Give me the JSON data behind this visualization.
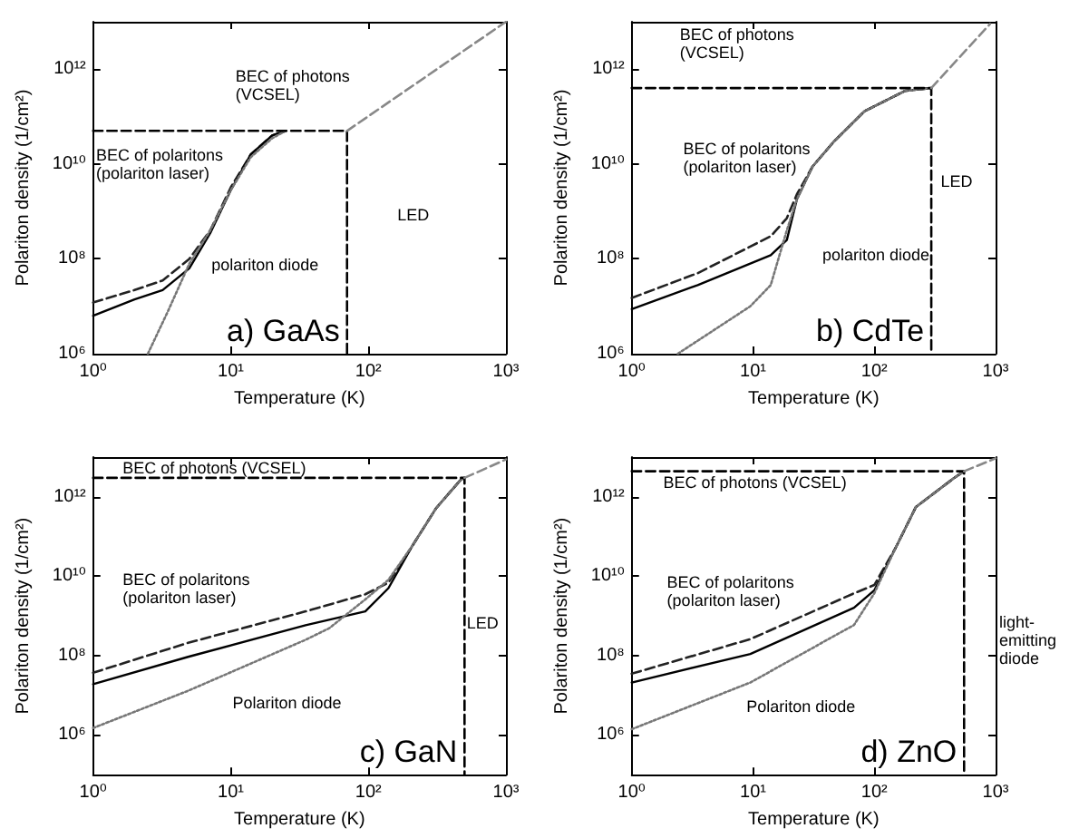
{
  "chart_data": [
    {
      "type": "line",
      "title": "a) GaAs",
      "xlabel": "Temperature (K)",
      "ylabel": "Polariton density (1/cm²)",
      "log": "xy",
      "grid": false,
      "marker": "none",
      "xlim": [
        1,
        1000
      ],
      "xticks": [
        {
          "value": 1,
          "label": "10⁰"
        },
        {
          "value": 10,
          "label": "10¹"
        },
        {
          "value": 100,
          "label": "10²"
        },
        {
          "value": 1000,
          "label": "10³"
        }
      ],
      "ylim": [
        1000000,
        10000000000000
      ],
      "yticks": [
        {
          "value": 1000000,
          "label": "10⁶"
        },
        {
          "value": 100000000,
          "label": "10⁸"
        },
        {
          "value": 10000000000,
          "label": "10¹⁰"
        },
        {
          "value": 1000000000000,
          "label": "10¹²"
        }
      ],
      "series": [
        {
          "color": "#222222",
          "line_style": "dashed",
          "x": [
            1,
            2,
            3.2,
            5,
            7.1,
            10,
            14,
            20,
            25
          ],
          "values": [
            12000000.0,
            22000000.0,
            35000000.0,
            100000000.0,
            400000000.0,
            3200000000.0,
            16000000000.0,
            40000000000.0,
            50000000000.0
          ]
        },
        {
          "color": "#000000",
          "line_style": "solid",
          "x": [
            1,
            2,
            3.2,
            5,
            7.1,
            10,
            14,
            20,
            25
          ],
          "values": [
            6300000.0,
            14000000.0,
            22000000.0,
            63000000.0,
            350000000.0,
            2800000000.0,
            16000000000.0,
            40000000000.0,
            50000000000.0
          ]
        },
        {
          "color": "#777777",
          "line_style": "dotted",
          "x": [
            2.5,
            3.5,
            5,
            7.1,
            10,
            14,
            20,
            25
          ],
          "values": [
            1000000.0,
            7900000.0,
            79000000.0,
            400000000.0,
            2800000000.0,
            14000000000.0,
            35000000000.0,
            50000000000.0
          ]
        },
        {
          "color": "#000000",
          "line_style": "dashed",
          "x": [
            1,
            70,
            70
          ],
          "values": [
            50000000000.0,
            50000000000.0,
            1000000.0
          ]
        },
        {
          "color": "#888888",
          "line_style": "dashed",
          "x": [
            70,
            1000
          ],
          "values": [
            50000000000.0,
            10000000000000.0
          ]
        }
      ],
      "annotations": [
        "BEC of photons\n(VCSEL)",
        "BEC of polaritons\n(polariton laser)",
        "polariton diode",
        "LED"
      ]
    },
    {
      "type": "line",
      "title": "b) CdTe",
      "xlabel": "Temperature (K)",
      "ylabel": "Polariton density (1/cm²)",
      "log": "xy",
      "grid": false,
      "marker": "none",
      "xlim": [
        1,
        1000
      ],
      "xticks": [
        {
          "value": 1,
          "label": "10⁰"
        },
        {
          "value": 10,
          "label": "10¹"
        },
        {
          "value": 100,
          "label": "10²"
        },
        {
          "value": 1000,
          "label": "10³"
        }
      ],
      "ylim": [
        1000000,
        10000000000000
      ],
      "yticks": [
        {
          "value": 1000000,
          "label": "10⁶"
        },
        {
          "value": 100000000,
          "label": "10⁸"
        },
        {
          "value": 10000000000,
          "label": "10¹⁰"
        },
        {
          "value": 1000000000000,
          "label": "10¹²"
        }
      ],
      "series": [
        {
          "color": "#222222",
          "line_style": "dashed",
          "x": [
            1,
            3.5,
            14,
            19,
            23,
            31,
            46,
            83,
            180,
            295
          ],
          "values": [
            15000000.0,
            50000000.0,
            300000000.0,
            720000000.0,
            2300000000.0,
            8900000000.0,
            29000000000.0,
            130000000000.0,
            350000000000.0,
            400000000000.0
          ]
        },
        {
          "color": "#000000",
          "line_style": "solid",
          "x": [
            1,
            3.5,
            14,
            19,
            23,
            31,
            46,
            83,
            180,
            295
          ],
          "values": [
            8700000.0,
            28000000.0,
            120000000.0,
            250000000.0,
            1800000000.0,
            8900000000.0,
            29000000000.0,
            130000000000.0,
            350000000000.0,
            400000000000.0
          ]
        },
        {
          "color": "#777777",
          "line_style": "dotted",
          "x": [
            2.4,
            9.5,
            14,
            19,
            23,
            31,
            46,
            83,
            180,
            295
          ],
          "values": [
            1000000.0,
            10000000.0,
            28000000.0,
            400000000.0,
            1800000000.0,
            8900000000.0,
            29000000000.0,
            130000000000.0,
            350000000000.0,
            400000000000.0
          ]
        },
        {
          "color": "#000000",
          "line_style": "dashed",
          "x": [
            1,
            295,
            295
          ],
          "values": [
            400000000000.0,
            400000000000.0,
            1000000.0
          ]
        },
        {
          "color": "#888888",
          "line_style": "dashed",
          "x": [
            295,
            900
          ],
          "values": [
            400000000000.0,
            9000000000000.0
          ]
        }
      ],
      "annotations": [
        "BEC of photons\n(VCSEL)",
        "BEC of polaritons\n(polariton laser)",
        "polariton diode",
        "LED"
      ]
    },
    {
      "type": "line",
      "title": "c) GaN",
      "xlabel": "Temperature (K)",
      "ylabel": "Polariton density (1/cm²)",
      "log": "xy",
      "grid": false,
      "marker": "none",
      "xlim": [
        1,
        1000
      ],
      "xticks": [
        {
          "value": 1,
          "label": "10⁰"
        },
        {
          "value": 10,
          "label": "10¹"
        },
        {
          "value": 100,
          "label": "10²"
        },
        {
          "value": 1000,
          "label": "10³"
        }
      ],
      "ylim": [
        100000,
        10000000000000
      ],
      "yticks": [
        {
          "value": 1000000,
          "label": "10⁶"
        },
        {
          "value": 100000000,
          "label": "10⁸"
        },
        {
          "value": 10000000000,
          "label": "10¹⁰"
        },
        {
          "value": 1000000000000,
          "label": "10¹²"
        }
      ],
      "series": [
        {
          "color": "#222222",
          "line_style": "dashed",
          "x": [
            1,
            4.9,
            35,
            95,
            140,
            210,
            310,
            470,
            500
          ],
          "values": [
            37000000.0,
            210000000.0,
            1300000000.0,
            3500000000.0,
            6900000000.0,
            60000000000.0,
            510000000000.0,
            2700000000000.0,
            3000000000000.0
          ]
        },
        {
          "color": "#000000",
          "line_style": "solid",
          "x": [
            1,
            4.9,
            35,
            95,
            140,
            210,
            310,
            470,
            500
          ],
          "values": [
            19000000.0,
            93000000.0,
            580000000.0,
            1300000000.0,
            5000000000.0,
            60000000000.0,
            510000000000.0,
            2700000000000.0,
            3000000000000.0
          ]
        },
        {
          "color": "#777777",
          "line_style": "dotted",
          "x": [
            1,
            4.9,
            35,
            52,
            95,
            140,
            210,
            310,
            470,
            500
          ],
          "values": [
            1500000.0,
            13000000.0,
            250000000.0,
            490000000.0,
            2600000000.0,
            8100000000.0,
            60000000000.0,
            510000000000.0,
            2700000000000.0,
            3000000000000.0
          ]
        },
        {
          "color": "#000000",
          "line_style": "dashed",
          "x": [
            1,
            500,
            500
          ],
          "values": [
            3000000000000.0,
            3000000000000.0,
            100000.0
          ]
        },
        {
          "color": "#888888",
          "line_style": "dashed",
          "x": [
            500,
            1000
          ],
          "values": [
            3000000000000.0,
            8700000000000.0
          ]
        }
      ],
      "annotations": [
        "BEC of photons (VCSEL)",
        "BEC of polaritons\n(polariton laser)",
        "Polariton diode",
        "LED"
      ]
    },
    {
      "type": "line",
      "title": "d) ZnO",
      "xlabel": "Temperature (K)",
      "ylabel": "Polariton density (1/cm²)",
      "log": "xy",
      "grid": false,
      "marker": "none",
      "xlim": [
        1,
        1000
      ],
      "xticks": [
        {
          "value": 1,
          "label": "10⁰"
        },
        {
          "value": 10,
          "label": "10¹"
        },
        {
          "value": 100,
          "label": "10²"
        },
        {
          "value": 1000,
          "label": "10³"
        }
      ],
      "ylim": [
        100000,
        10000000000000
      ],
      "yticks": [
        {
          "value": 1000000,
          "label": "10⁶"
        },
        {
          "value": 100000000,
          "label": "10⁸"
        },
        {
          "value": 10000000000,
          "label": "10¹⁰"
        },
        {
          "value": 1000000000000,
          "label": "10¹²"
        }
      ],
      "series": [
        {
          "color": "#222222",
          "line_style": "dashed",
          "x": [
            1,
            9.5,
            68,
            100,
            150,
            220,
            450,
            550
          ],
          "values": [
            35000000.0,
            260000000.0,
            3700000000.0,
            6000000000.0,
            52000000000.0,
            550000000000.0,
            2900000000000.0,
            4400000000000.0
          ]
        },
        {
          "color": "#000000",
          "line_style": "solid",
          "x": [
            1,
            9.5,
            68,
            100,
            150,
            220,
            450,
            550
          ],
          "values": [
            21000000.0,
            110000000.0,
            1600000000.0,
            4400000000.0,
            52000000000.0,
            550000000000.0,
            2900000000000.0,
            4400000000000.0
          ]
        },
        {
          "color": "#777777",
          "line_style": "dotted",
          "x": [
            1,
            9.5,
            68,
            100,
            150,
            220,
            450,
            550
          ],
          "values": [
            1400000.0,
            21000000.0,
            590000000.0,
            3700000000.0,
            52000000000.0,
            550000000000.0,
            2900000000000.0,
            4400000000000.0
          ]
        },
        {
          "color": "#000000",
          "line_style": "dashed",
          "x": [
            1,
            550,
            550
          ],
          "values": [
            4400000000000.0,
            4400000000000.0,
            100000.0
          ]
        },
        {
          "color": "#888888",
          "line_style": "dashed",
          "x": [
            550,
            1000
          ],
          "values": [
            4400000000000.0,
            9300000000000.0
          ]
        }
      ],
      "annotations": [
        "BEC of photons (VCSEL)",
        "BEC of polaritons\n(polariton laser)",
        "Polariton diode",
        "light-\nemitting\ndiode"
      ]
    }
  ]
}
